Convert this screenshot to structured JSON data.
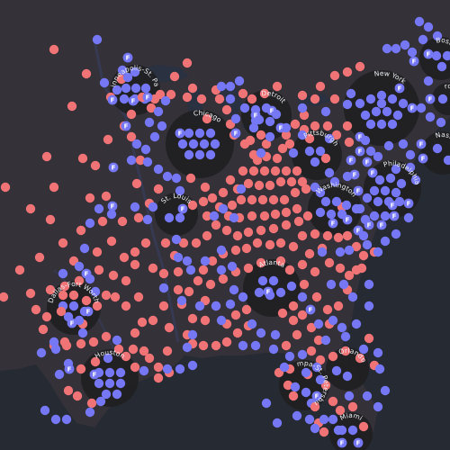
{
  "map": {
    "colors": {
      "background": "#2b2c32",
      "land": "#343139",
      "ocean": "#232831",
      "red": "#f07376",
      "blue": "#7577f4",
      "metro_circle": "#1f1f22"
    },
    "marker_letter": "F",
    "metros": [
      {
        "name": "Minneapolis-St. Paul"
      },
      {
        "name": "Detroit"
      },
      {
        "name": "Chicago"
      },
      {
        "name": "Pittsburgh"
      },
      {
        "name": "New York"
      },
      {
        "name": "Boston"
      },
      {
        "name": "Providence"
      },
      {
        "name": "Nassau"
      },
      {
        "name": "Philadelphia"
      },
      {
        "name": "Washington"
      },
      {
        "name": "St. Louis"
      },
      {
        "name": "Atlanta"
      },
      {
        "name": "Dallas-Fort Worth"
      },
      {
        "name": "Houston"
      },
      {
        "name": "Orlando"
      },
      {
        "name": "Tampa-St. Petersburg"
      },
      {
        "name": "Miami"
      }
    ]
  }
}
